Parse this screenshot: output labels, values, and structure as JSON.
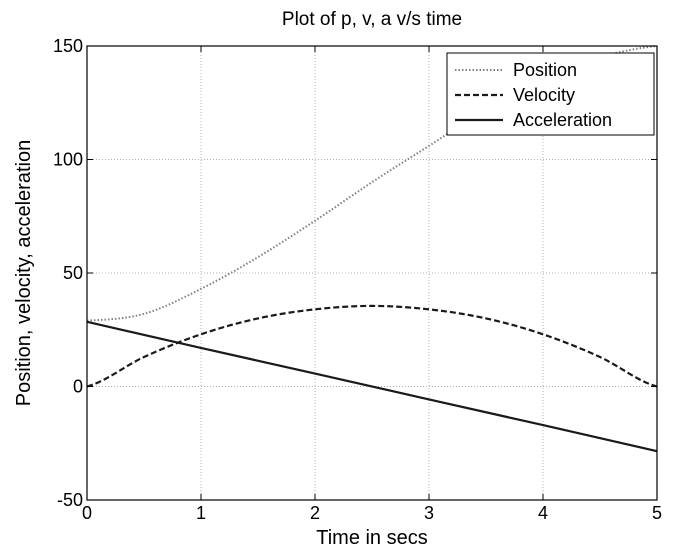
{
  "chart_data": {
    "type": "line",
    "title": "Plot of p, v, a v/s time",
    "xlabel": "Time in secs",
    "ylabel": "Position, velocity, acceleration",
    "xlim": [
      0,
      5
    ],
    "ylim": [
      -50,
      150
    ],
    "xticks": [
      0,
      1,
      2,
      3,
      4,
      5
    ],
    "yticks": [
      -50,
      0,
      50,
      100,
      150
    ],
    "grid": true,
    "legend_position": "top-right",
    "series": [
      {
        "name": "Position",
        "style": "dotted",
        "color": "#808080",
        "x": [
          0,
          0.5,
          1,
          1.5,
          2,
          2.5,
          3,
          3.5,
          4,
          4.5,
          5
        ],
        "y": [
          29,
          32,
          43,
          57,
          73,
          90,
          106,
          122,
          135,
          145,
          150
        ]
      },
      {
        "name": "Velocity",
        "style": "dashed",
        "color": "#1a1a1a",
        "x": [
          0,
          0.5,
          1,
          1.5,
          2,
          2.5,
          3,
          3.5,
          4,
          4.5,
          5
        ],
        "y": [
          0,
          13,
          23,
          30,
          34,
          35.5,
          34,
          30,
          23,
          13,
          0
        ]
      },
      {
        "name": "Acceleration",
        "style": "solid",
        "color": "#1a1a1a",
        "x": [
          0,
          1,
          2,
          3,
          4,
          5
        ],
        "y": [
          28.5,
          17,
          5.7,
          -5.7,
          -17,
          -28.5
        ]
      }
    ]
  }
}
